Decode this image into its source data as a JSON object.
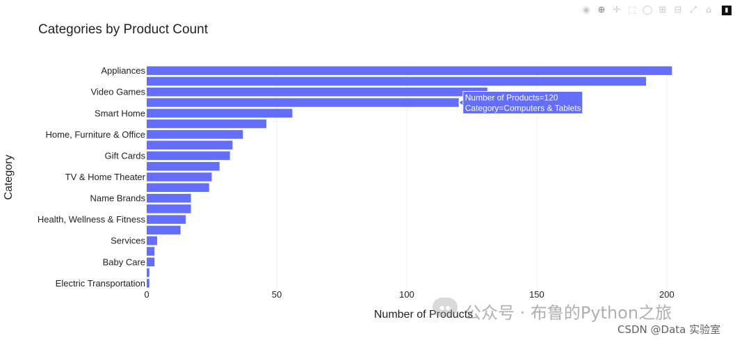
{
  "toolbar": {
    "icons": [
      "camera-icon",
      "zoom-icon",
      "pan-icon",
      "box-select-icon",
      "lasso-icon",
      "zoom-in-icon",
      "zoom-out-icon",
      "autoscale-icon",
      "home-icon",
      "plotly-logo-icon"
    ]
  },
  "chart_data": {
    "type": "bar",
    "orientation": "horizontal",
    "title": "Categories by Product Count",
    "xlabel": "Number of Products",
    "ylabel": "Category",
    "xlim": [
      0,
      215
    ],
    "xticks": [
      0,
      50,
      100,
      150,
      200
    ],
    "grid": true,
    "bar_color": "#636efa",
    "categories": [
      "Appliances",
      "",
      "Video Games",
      "Computers & Tablets",
      "Smart Home",
      "",
      "Home, Furniture & Office",
      "",
      "Gift Cards",
      "",
      "TV & Home Theater",
      "",
      "Name Brands",
      "",
      "Health, Wellness & Fitness",
      "",
      "Services",
      "",
      "Baby Care",
      "",
      "Electric Transportation"
    ],
    "values": [
      202,
      192,
      131,
      120,
      56,
      46,
      37,
      33,
      32,
      28,
      25,
      24,
      17,
      17,
      15,
      13,
      4,
      3,
      3,
      1,
      1
    ],
    "tooltip": {
      "line1": "Number of Products=120",
      "line2": "Category=Computers & Tablets",
      "bar_index": 3
    }
  },
  "watermark": {
    "text1": "公众号 · 布鲁的Python之旅",
    "text2": "CSDN @Data 实验室"
  }
}
